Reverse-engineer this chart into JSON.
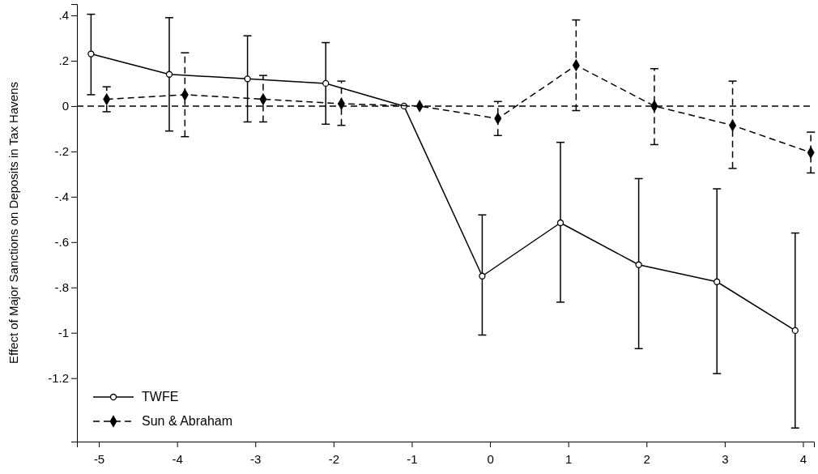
{
  "chart_data": {
    "type": "line",
    "ylabel": "Effect of Major Sanctions on Deposits in Tax Havens",
    "xlim": [
      -5.28,
      4.14
    ],
    "xticks": [
      -5,
      -4,
      -3,
      -2,
      -1,
      0,
      1,
      2,
      3,
      4
    ],
    "ylim": [
      -1.48,
      0.45
    ],
    "yticks": [
      {
        "value": 0.4,
        "label": ".4"
      },
      {
        "value": 0.2,
        "label": ".2"
      },
      0,
      {
        "value": -0.2,
        "label": "-.2"
      },
      {
        "value": -0.4,
        "label": "-.4"
      },
      {
        "value": -0.6,
        "label": "-.6"
      },
      {
        "value": -0.8,
        "label": "-.8"
      },
      -1,
      {
        "value": -1.2,
        "label": "-1.2"
      }
    ],
    "grid": false,
    "legend": "bottom left",
    "ref_lines": [
      {
        "axis": "y",
        "value": 0,
        "line_style": "dashed",
        "color": "#000000"
      }
    ],
    "series": [
      {
        "name": "TWFE",
        "color": "#000000",
        "marker": "circle",
        "line_style": "solid",
        "x": [
          -5.1,
          -4.1,
          -3.1,
          -2.1,
          -1.1,
          -0.1,
          0.9,
          1.9,
          2.9,
          3.9
        ],
        "values": [
          0.23,
          0.14,
          0.12,
          0.1,
          0,
          -0.75,
          -0.515,
          -0.7,
          -0.775,
          -0.99
        ],
        "errors": [
          [
            0.05,
            0.405
          ],
          [
            -0.11,
            0.39
          ],
          [
            -0.07,
            0.31
          ],
          [
            -0.08,
            0.28
          ],
          null,
          [
            -1.01,
            -0.48
          ],
          [
            -0.865,
            -0.16
          ],
          [
            -1.07,
            -0.32
          ],
          [
            -1.18,
            -0.365
          ],
          [
            -1.42,
            -0.56
          ]
        ]
      },
      {
        "name": "Sun & Abraham",
        "color": "#000000",
        "marker": "diamond",
        "line_style": "dashed",
        "x": [
          -4.9,
          -3.9,
          -2.9,
          -1.9,
          -0.9,
          0.1,
          1.1,
          2.1,
          3.1,
          4.1
        ],
        "values": [
          0.03,
          0.05,
          0.03,
          0.01,
          0,
          -0.055,
          0.18,
          0,
          -0.085,
          -0.205
        ],
        "errors": [
          [
            -0.025,
            0.085
          ],
          [
            -0.135,
            0.235
          ],
          [
            -0.07,
            0.135
          ],
          [
            -0.085,
            0.11
          ],
          null,
          [
            -0.13,
            0.02
          ],
          [
            -0.02,
            0.38
          ],
          [
            -0.17,
            0.165
          ],
          [
            -0.275,
            0.11
          ],
          [
            -0.295,
            -0.115
          ]
        ]
      }
    ]
  }
}
